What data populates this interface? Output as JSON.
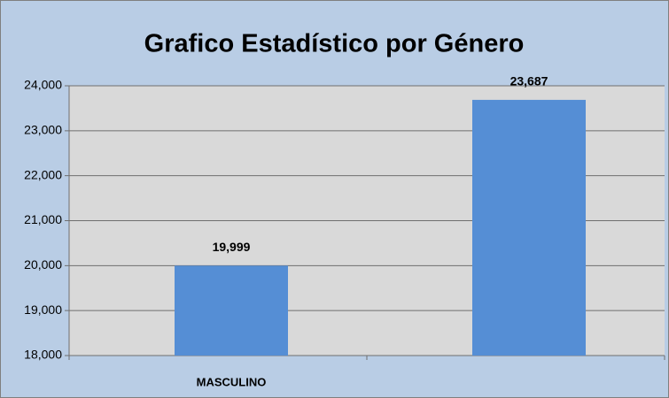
{
  "chart_data": {
    "type": "bar",
    "title": "Grafico Estadístico por Género",
    "categories": [
      "MASCULINO",
      null
    ],
    "values": [
      19999,
      23687
    ],
    "value_labels": [
      "19,999",
      "23,687"
    ],
    "color": "#558ed5",
    "ylim": [
      18000,
      24000
    ],
    "yticks": [
      {
        "value": 18000,
        "label": "18,000"
      },
      {
        "value": 19000,
        "label": "19,000"
      },
      {
        "value": 20000,
        "label": "20,000"
      },
      {
        "value": 21000,
        "label": "21,000"
      },
      {
        "value": 22000,
        "label": "22,000"
      },
      {
        "value": 23000,
        "label": "23,000"
      },
      {
        "value": 24000,
        "label": "24,000"
      }
    ],
    "grid": true
  }
}
